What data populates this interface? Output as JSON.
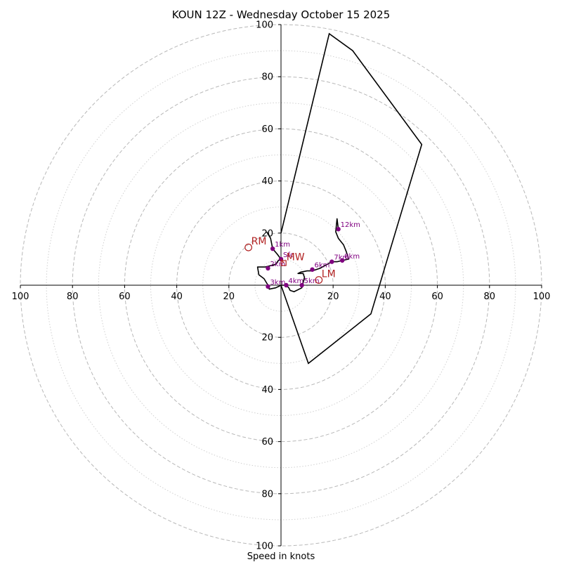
{
  "chart_data": {
    "type": "hodograph",
    "title": "KOUN 12Z - Wednesday October 15 2025",
    "xlabel": "Speed in knots",
    "range": [
      -100,
      100
    ],
    "ring_major_step": 20,
    "ring_minor_step": 10,
    "tick_labels": {
      "x": [
        {
          "value": -100,
          "label": "100"
        },
        {
          "value": -80,
          "label": "80"
        },
        {
          "value": -60,
          "label": "60"
        },
        {
          "value": -40,
          "label": "40"
        },
        {
          "value": -20,
          "label": "20"
        },
        {
          "value": 20,
          "label": "20"
        },
        {
          "value": 40,
          "label": "40"
        },
        {
          "value": 60,
          "label": "60"
        },
        {
          "value": 80,
          "label": "80"
        },
        {
          "value": 100,
          "label": "100"
        }
      ],
      "y": [
        {
          "value": 100,
          "label": "100"
        },
        {
          "value": 80,
          "label": "80"
        },
        {
          "value": 60,
          "label": "60"
        },
        {
          "value": 40,
          "label": "40"
        },
        {
          "value": 20,
          "label": "20"
        },
        {
          "value": -20,
          "label": "20"
        },
        {
          "value": -40,
          "label": "40"
        },
        {
          "value": -60,
          "label": "60"
        },
        {
          "value": -80,
          "label": "80"
        },
        {
          "value": -100,
          "label": "100"
        }
      ]
    },
    "hodograph_trace": [
      [
        -5.5,
        20.5
      ],
      [
        -4,
        18
      ],
      [
        -3.2,
        14
      ],
      [
        -1.5,
        12
      ],
      [
        0,
        10
      ],
      [
        -1,
        9.5
      ],
      [
        -2,
        8
      ],
      [
        -4,
        7.5
      ],
      [
        -6,
        7
      ],
      [
        -9,
        7
      ],
      [
        -8.5,
        4
      ],
      [
        -6.5,
        2.5
      ],
      [
        -5,
        0
      ],
      [
        -4.5,
        -1.5
      ],
      [
        -2,
        -1
      ],
      [
        0,
        0
      ],
      [
        2,
        0
      ],
      [
        3,
        -1
      ],
      [
        3.5,
        -2
      ],
      [
        5,
        -2.5
      ],
      [
        8,
        -1
      ],
      [
        8.5,
        1
      ],
      [
        9,
        3
      ],
      [
        8.5,
        4.5
      ],
      [
        6.5,
        4.5
      ],
      [
        7.5,
        5
      ],
      [
        10,
        5.5
      ],
      [
        12,
        5.5
      ],
      [
        15,
        6.5
      ],
      [
        19.5,
        9
      ],
      [
        21.5,
        9
      ],
      [
        23.5,
        9.5
      ],
      [
        26,
        10
      ],
      [
        25,
        13
      ],
      [
        24,
        15.5
      ],
      [
        22,
        18
      ],
      [
        21,
        20.5
      ],
      [
        21.5,
        25.5
      ],
      [
        22,
        21.5
      ]
    ],
    "height_points": [
      {
        "label": "Sfc",
        "u": 0,
        "v": 10
      },
      {
        "label": "1km",
        "u": -3.2,
        "v": 14
      },
      {
        "label": "2km",
        "u": -5,
        "v": 6.5
      },
      {
        "label": "3km",
        "u": -5,
        "v": -0.5
      },
      {
        "label": "4km",
        "u": 2,
        "v": 0
      },
      {
        "label": "5km",
        "u": 8,
        "v": 0
      },
      {
        "label": "6km",
        "u": 12,
        "v": 6
      },
      {
        "label": "7km",
        "u": 19.5,
        "v": 9
      },
      {
        "label": "8km",
        "u": 23.5,
        "v": 9.5
      },
      {
        "label": "12km",
        "u": 22,
        "v": 21.5
      }
    ],
    "effective_shear_polygon": [
      [
        0,
        20
      ],
      [
        18.5,
        96.5
      ],
      [
        27.5,
        90
      ],
      [
        54,
        54
      ],
      [
        34.5,
        -11
      ],
      [
        10.5,
        -30
      ],
      [
        0,
        0
      ]
    ],
    "storm_motion": [
      {
        "label": "RM",
        "u": -12.5,
        "v": 14.5,
        "marker": "circle"
      },
      {
        "label": "LM",
        "u": 14.5,
        "v": 2,
        "marker": "circle"
      },
      {
        "label": "MW",
        "u": 1,
        "v": 8.5,
        "marker": "square"
      }
    ],
    "shear_vector": {
      "from": [
        0,
        10
      ],
      "to": [
        1,
        8.5
      ]
    },
    "colors": {
      "ring_major": "#b8b8b8",
      "ring_minor": "#d0d0d0",
      "trace": "#000000",
      "height_points": "#800080",
      "storm_motion": "#b22222"
    }
  }
}
